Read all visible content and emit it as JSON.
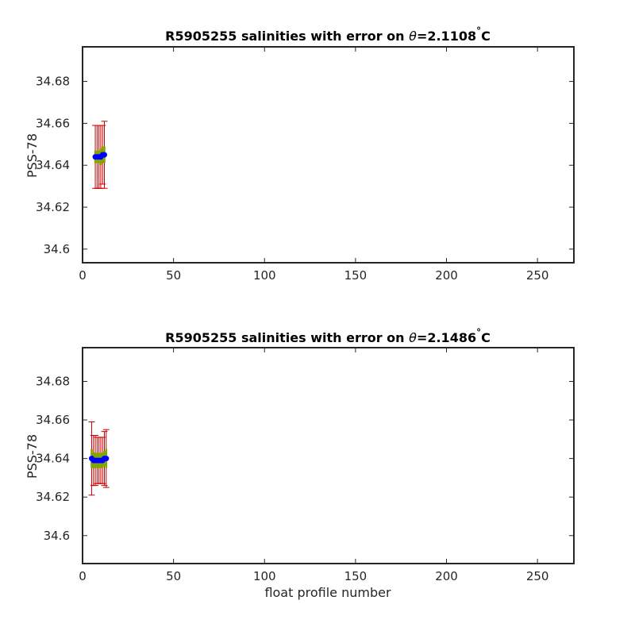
{
  "chart_data": [
    {
      "type": "scatter",
      "title_prefix": "R5905255 salinities with error on ",
      "title_theta": "θ",
      "title_value": "=2.1108",
      "title_degree": "°",
      "title_unit": "C",
      "xlabel": "",
      "ylabel": "PSS-78",
      "xlim": [
        0,
        270
      ],
      "ylim": [
        34.5935,
        34.6965
      ],
      "x_ticks": [
        0,
        50,
        100,
        150,
        200,
        250
      ],
      "y_ticks": [
        34.6,
        34.62,
        34.64,
        34.66,
        34.68
      ],
      "y_tick_labels": [
        "34.6",
        "34.62",
        "34.64",
        "34.66",
        "34.68"
      ],
      "grid": false,
      "series": [
        {
          "x": [
            7,
            8,
            9,
            10,
            11,
            12
          ],
          "y": [
            34.644,
            34.644,
            34.644,
            34.644,
            34.645,
            34.645
          ],
          "error": [
            0.015,
            0.015,
            0.015,
            0.015,
            0.014,
            0.016
          ],
          "inner_error": [
            0.003,
            0.003,
            0.003,
            0.004,
            0.004,
            0.004
          ]
        }
      ],
      "colors": {
        "marker": "#0000ff",
        "outer_error": "#cc0000",
        "inner_error": "#7fa600"
      }
    },
    {
      "type": "scatter",
      "title_prefix": "R5905255 salinities with error on ",
      "title_theta": "θ",
      "title_value": "=2.1486",
      "title_degree": "°",
      "title_unit": "C",
      "xlabel": "float profile number",
      "ylabel": "PSS-78",
      "xlim": [
        0,
        270
      ],
      "ylim": [
        34.5855,
        34.6975
      ],
      "x_ticks": [
        0,
        50,
        100,
        150,
        200,
        250
      ],
      "y_ticks": [
        34.6,
        34.62,
        34.64,
        34.66,
        34.68
      ],
      "y_tick_labels": [
        "34.6",
        "34.62",
        "34.64",
        "34.66",
        "34.68"
      ],
      "grid": false,
      "series": [
        {
          "x": [
            5,
            6,
            7,
            8,
            9,
            10,
            11,
            12,
            13
          ],
          "y": [
            34.64,
            34.639,
            34.639,
            34.639,
            34.639,
            34.639,
            34.639,
            34.64,
            34.64
          ],
          "error": [
            0.019,
            0.013,
            0.013,
            0.012,
            0.012,
            0.012,
            0.012,
            0.014,
            0.015
          ],
          "inner_error": [
            0.005,
            0.004,
            0.004,
            0.004,
            0.004,
            0.004,
            0.004,
            0.004,
            0.005
          ]
        }
      ],
      "colors": {
        "marker": "#0000ff",
        "outer_error": "#cc0000",
        "inner_error": "#7fa600"
      }
    }
  ]
}
